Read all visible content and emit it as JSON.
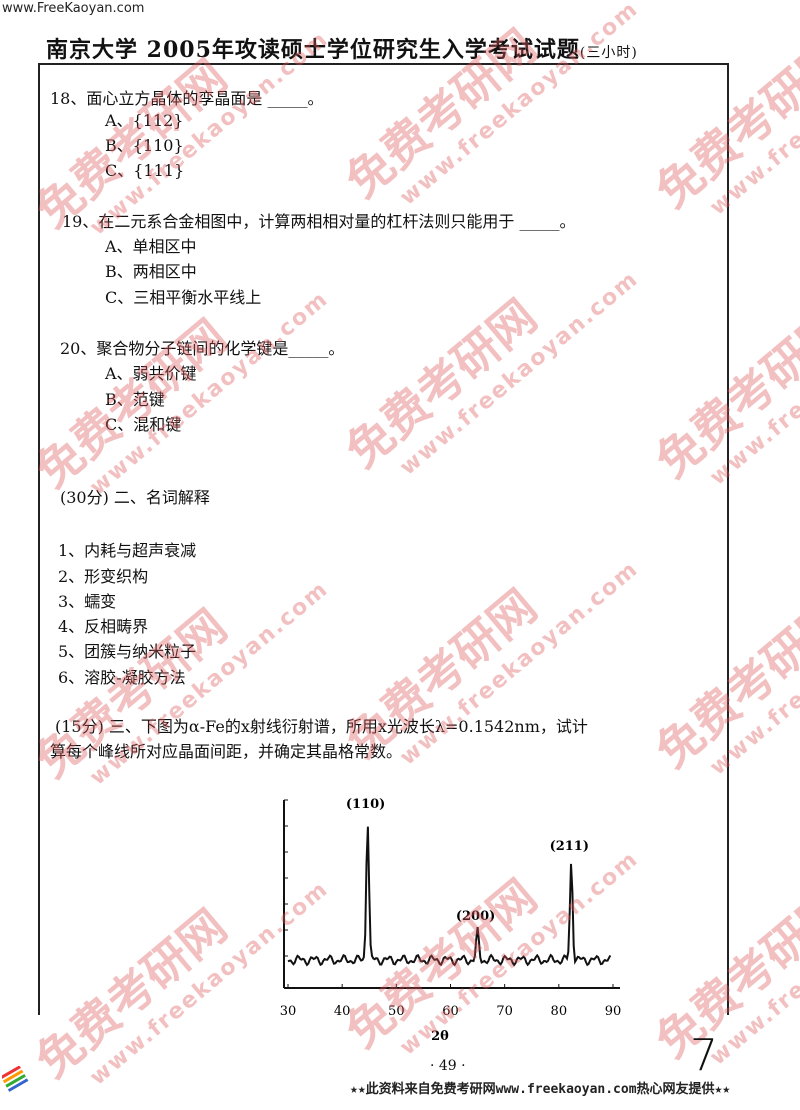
{
  "site": "www.FreeKaoyan.com",
  "header": {
    "title": "南京大学 2005年攻读硕士学位研究生入学考试试题",
    "duration": "(三小时)"
  },
  "q18": {
    "stem": "18、面心立方晶体的孪晶面是 _____。",
    "options": [
      "A、{112}",
      "B、{110}",
      "C、{111}"
    ]
  },
  "q19": {
    "stem": "19、在二元系合金相图中，计算两相相对量的杠杆法则只能用于 _____。",
    "options": [
      "A、单相区中",
      "B、两相区中",
      "C、三相平衡水平线上"
    ]
  },
  "q20": {
    "stem": "20、聚合物分子链间的化学键是_____。",
    "options": [
      "A、弱共价键",
      "B、范键",
      "C、混和键"
    ]
  },
  "section2": {
    "heading": "(30分) 二、名词解释",
    "items": [
      "1、内耗与超声衰减",
      "2、形变织构",
      "3、蠕变",
      "4、反相畴界",
      "5、团簇与纳米粒子",
      "6、溶胶-凝胶方法"
    ]
  },
  "section3": {
    "line1": "(15分) 三、下图为α-Fe的x射线衍射谱，所用x光波长λ=0.1542nm，试计",
    "line2": "算每个峰线所对应晶面间距，并确定其晶格常数。"
  },
  "chart_data": {
    "type": "line",
    "xlabel": "2θ",
    "xlim": [
      30,
      90
    ],
    "xticks": [
      "30",
      "40",
      "50",
      "60",
      "70",
      "80",
      "90"
    ],
    "peaks": [
      {
        "label": "(110)",
        "x": 44.7,
        "relative_intensity": 100
      },
      {
        "label": "(200)",
        "x": 65.0,
        "relative_intensity": 20
      },
      {
        "label": "(211)",
        "x": 82.3,
        "relative_intensity": 70
      }
    ],
    "grid": false
  },
  "watermark": {
    "text": "免费考研网",
    "url": "www.freekaoyan.com",
    "color": "#dc5a5a"
  },
  "footer": {
    "page": "· 49 ·",
    "banner": "★★此资料来自免费考研网www.freekaoyan.com热心网友提供★★",
    "handwritten": "7"
  }
}
